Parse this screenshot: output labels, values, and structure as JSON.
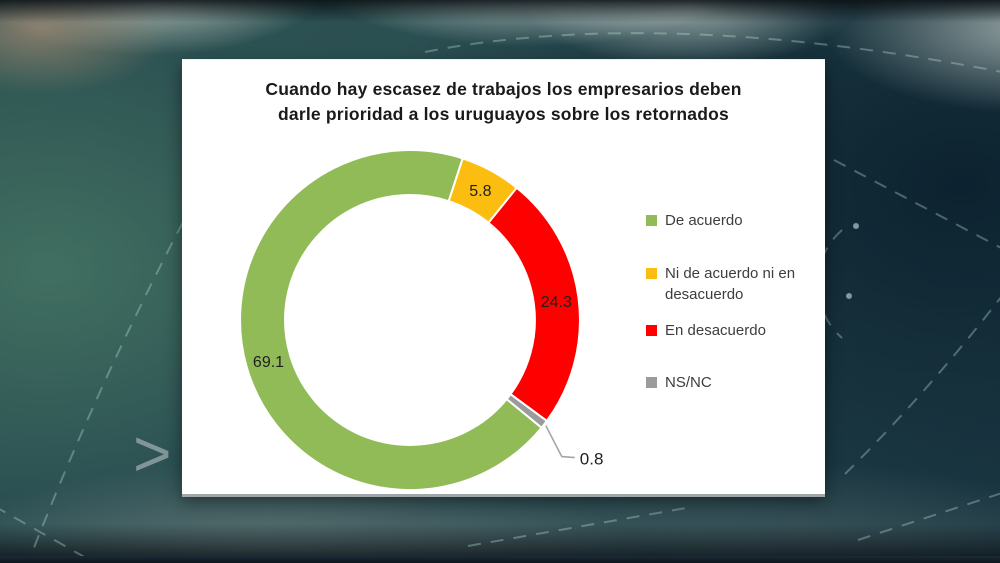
{
  "background": {
    "chevron_glyph": ">"
  },
  "card": {
    "title_line1": "Cuando hay escasez de trabajos los empresarios deben",
    "title_line2": "darle prioridad a los uruguayos sobre los retornados"
  },
  "chart_data": {
    "type": "pie",
    "subtype": "donut",
    "title": "Cuando hay escasez de trabajos los empresarios deben darle prioridad a los uruguayos sobre los retornados",
    "categories": [
      "De acuerdo",
      "Ni de acuerdo ni en desacuerdo",
      "En desacuerdo",
      "NS/NC"
    ],
    "values": [
      69.1,
      5.8,
      24.3,
      0.8
    ],
    "data_labels": [
      "69.1",
      "5.8",
      "24.3",
      "0.8"
    ],
    "colors": [
      "#90BB57",
      "#FBBE10",
      "#FE0000",
      "#9B9B9B"
    ],
    "legend_position": "right",
    "direction": "clockwise",
    "start_angle_deg": 129.3,
    "hole_ratio": 0.735,
    "gap_stroke_color": "#FFFFFF",
    "label_color": "#1F1F1F",
    "leader_line_color": "#A6A6A6",
    "small_label_threshold_pct": 2
  }
}
